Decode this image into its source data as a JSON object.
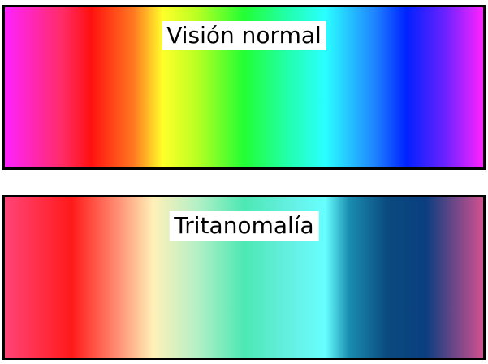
{
  "panels": [
    {
      "label": "Visión normal",
      "gradient_stops": [
        "#ff22ff",
        "#ff2c66",
        "#ff1010",
        "#ff7a20",
        "#ffff2a",
        "#bbff22",
        "#22ff33",
        "#22ffaa",
        "#2affff",
        "#1f88ff",
        "#0022ff",
        "#6a22ff",
        "#ff22ff"
      ]
    },
    {
      "label": "Tritanomalía",
      "gradient_stops": [
        "#ff4477",
        "#ff1a1a",
        "#ff9477",
        "#fff0b8",
        "#b6f0c6",
        "#4de8b4",
        "#66f0e4",
        "#66ffff",
        "#1a8cb0",
        "#0a4a7e",
        "#0a3e80",
        "#d25090"
      ]
    }
  ],
  "colors": {
    "border": "#000000",
    "label_background": "#ffffff",
    "label_text": "#000000"
  }
}
